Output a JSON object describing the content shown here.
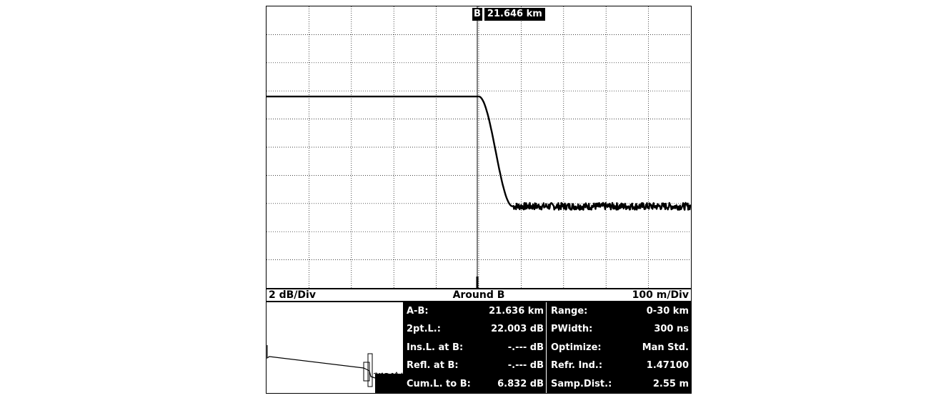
{
  "marker": {
    "letter": "B",
    "distance": "21.646 km",
    "position_km": 21.646
  },
  "scale": {
    "vertical": "2 dB/Div",
    "center": "Around B",
    "horizontal": "100 m/Div"
  },
  "measurements": [
    {
      "label": "A-B:",
      "value": "21.636 km"
    },
    {
      "label": "2pt.L.:",
      "value": "22.003 dB"
    },
    {
      "label": "Ins.L. at B:",
      "value": "-.--- dB"
    },
    {
      "label": "Refl. at B:",
      "value": "-.--- dB"
    },
    {
      "label": "Cum.L. to B:",
      "value": "6.832 dB"
    }
  ],
  "settings": [
    {
      "label": "Range:",
      "value": "0-30 km"
    },
    {
      "label": "PWidth:",
      "value": "300 ns"
    },
    {
      "label": "Optimize:",
      "value": "Man Std."
    },
    {
      "label": "Refr. Ind.:",
      "value": "1.47100"
    },
    {
      "label": "Samp.Dist.:",
      "value": "2.55 m"
    }
  ],
  "trace": {
    "grid_cols": 10,
    "grid_rows": 10,
    "x_div_m": 100,
    "y_div_db": 2,
    "center_km": 21.646,
    "pre_level_db": 0,
    "post_level_db": -7.8,
    "edge_start_m": 0,
    "edge_end_m": 80,
    "noise_db": 0.25
  },
  "colors": {
    "trace": "#000000",
    "grid": "#000000",
    "background": "#ffffff",
    "panel": "#000000",
    "panel_text": "#ffffff"
  }
}
